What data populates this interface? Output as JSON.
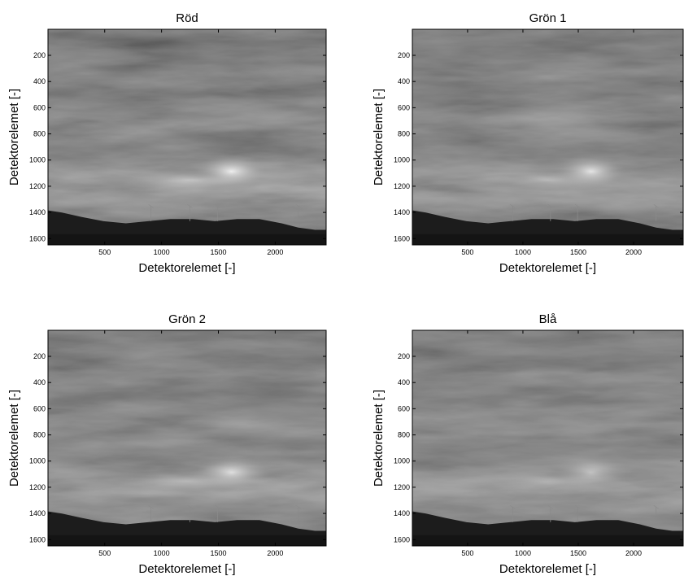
{
  "chart_data": [
    {
      "type": "heatmap",
      "title": "Röd",
      "xlabel": "Detektorelemet  [-]",
      "ylabel": "Detektorelemet  [-]",
      "xticks": [
        500,
        1000,
        1500,
        2000
      ],
      "yticks": [
        200,
        400,
        600,
        800,
        1000,
        1200,
        1400,
        1600
      ],
      "xlim": [
        1,
        2448
      ],
      "ylim": [
        1,
        1648
      ],
      "colormap": "gray",
      "grid": false
    },
    {
      "type": "heatmap",
      "title": "Grön 1",
      "xlabel": "Detektorelemet  [-]",
      "ylabel": "Detektorelemet  [-]",
      "xticks": [
        500,
        1000,
        1500,
        2000
      ],
      "yticks": [
        200,
        400,
        600,
        800,
        1000,
        1200,
        1400,
        1600
      ],
      "xlim": [
        1,
        2448
      ],
      "ylim": [
        1,
        1648
      ],
      "colormap": "gray",
      "grid": false
    },
    {
      "type": "heatmap",
      "title": "Grön 2",
      "xlabel": "Detektorelemet  [-]",
      "ylabel": "Detektorelemet  [-]",
      "xticks": [
        500,
        1000,
        1500,
        2000
      ],
      "yticks": [
        200,
        400,
        600,
        800,
        1000,
        1200,
        1400,
        1600
      ],
      "xlim": [
        1,
        2448
      ],
      "ylim": [
        1,
        1648
      ],
      "colormap": "gray",
      "grid": false
    },
    {
      "type": "heatmap",
      "title": "Blå",
      "xlabel": "Detektorelemet  [-]",
      "ylabel": "Detektorelemet  [-]",
      "xticks": [
        500,
        1000,
        1500,
        2000
      ],
      "yticks": [
        200,
        400,
        600,
        800,
        1000,
        1200,
        1400,
        1600
      ],
      "xlim": [
        1,
        2448
      ],
      "ylim": [
        1,
        1648
      ],
      "colormap": "gray",
      "grid": false
    }
  ]
}
